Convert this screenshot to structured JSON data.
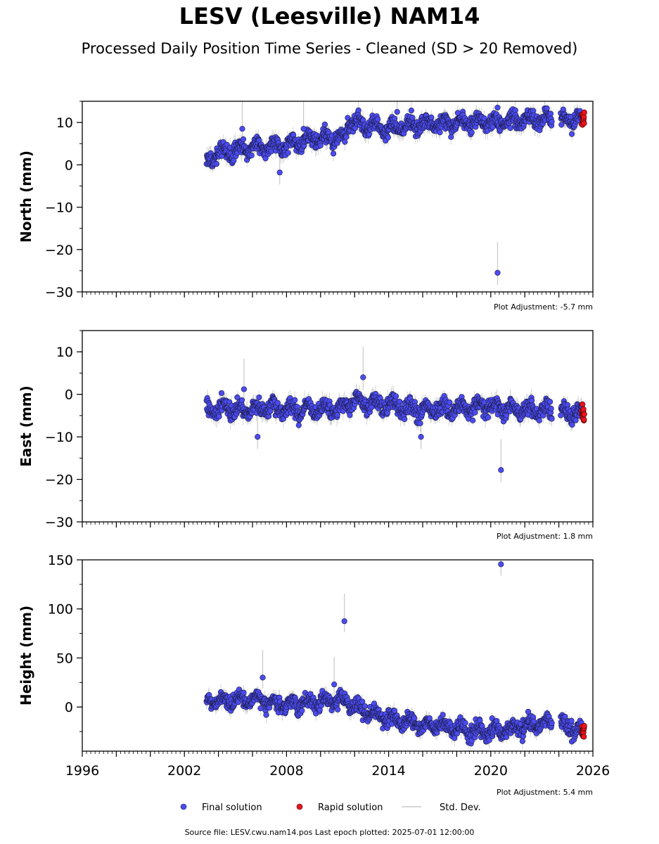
{
  "figure": {
    "title": "LESV (Leesville) NAM14",
    "subtitle": "Processed Daily Position Time Series - Cleaned (SD > 20 Removed)",
    "source_note": "Source file: LESV.cwu.nam14.pos  Last epoch plotted: 2025-07-01 12:00:00"
  },
  "colors": {
    "final": "#4b4bf0",
    "rapid": "#e8141e",
    "stddev": "#c8c8c8",
    "marker_edge": "#1a1a40"
  },
  "legend": {
    "placement": "bottom-center",
    "items": [
      {
        "label": "Final solution",
        "kind": "final"
      },
      {
        "label": "Rapid solution",
        "kind": "rapid"
      },
      {
        "label": "Std. Dev.",
        "kind": "stddev"
      }
    ]
  },
  "chart_data": [
    {
      "type": "scatter",
      "ylabel": "North (mm)",
      "adjustment_note": "Plot Adjustment: -5.7 mm",
      "xlim": [
        1996,
        2026
      ],
      "ylim": [
        -30,
        15
      ],
      "yticks": [
        10,
        0,
        -10,
        -20,
        -30
      ],
      "ytick_labels": [
        "10",
        "0",
        "−10",
        "−20",
        "−30"
      ],
      "show_xtick_labels": false,
      "trend": [
        [
          2003.3,
          1.0
        ],
        [
          2004.0,
          3.0
        ],
        [
          2006.0,
          4.0
        ],
        [
          2008.0,
          4.5
        ],
        [
          2009.5,
          6.0
        ],
        [
          2011.5,
          6.0
        ],
        [
          2011.6,
          10.0
        ],
        [
          2014.0,
          8.5
        ],
        [
          2016.0,
          9.5
        ],
        [
          2019.5,
          10.0
        ],
        [
          2025.5,
          11.0
        ]
      ],
      "gaps": [
        [
          2023.6,
          2024.1
        ]
      ],
      "final_end": 2025.35,
      "rapid_range": [
        2025.35,
        2025.5
      ],
      "noise": 1.8,
      "outliers": [
        [
          2020.4,
          -25.5
        ],
        [
          2020.4,
          13.5
        ],
        [
          2005.4,
          8.5
        ],
        [
          2007.6,
          -1.8
        ],
        [
          2009.0,
          8.5
        ],
        [
          2014.5,
          12.5
        ]
      ]
    },
    {
      "type": "scatter",
      "ylabel": "East (mm)",
      "adjustment_note": "Plot Adjustment: 1.8 mm",
      "xlim": [
        1996,
        2026
      ],
      "ylim": [
        -30,
        15
      ],
      "yticks": [
        10,
        0,
        -10,
        -20,
        -30
      ],
      "ytick_labels": [
        "10",
        "0",
        "−10",
        "−20",
        "−30"
      ],
      "show_xtick_labels": false,
      "trend": [
        [
          2003.3,
          -3.5
        ],
        [
          2011.0,
          -3.5
        ],
        [
          2012.0,
          -1.5
        ],
        [
          2013.5,
          -2.5
        ],
        [
          2016.0,
          -4.0
        ],
        [
          2019.5,
          -3.0
        ],
        [
          2025.5,
          -4.5
        ]
      ],
      "gaps": [
        [
          2023.6,
          2024.1
        ]
      ],
      "final_end": 2025.35,
      "rapid_range": [
        2025.35,
        2025.5
      ],
      "noise": 1.8,
      "outliers": [
        [
          2020.6,
          -17.8
        ],
        [
          2012.5,
          4.0
        ],
        [
          2006.3,
          -10.0
        ],
        [
          2015.9,
          -10.0
        ],
        [
          2005.5,
          1.2
        ]
      ]
    },
    {
      "type": "scatter",
      "ylabel": "Height (mm)",
      "adjustment_note": "Plot Adjustment: 5.4 mm",
      "xlim": [
        1996,
        2026
      ],
      "ylim": [
        -45,
        150
      ],
      "yticks": [
        150,
        100,
        50,
        0
      ],
      "ytick_labels": [
        "150",
        "100",
        "50",
        "0"
      ],
      "show_xtick_labels": true,
      "xticks": [
        1996,
        2002,
        2008,
        2014,
        2020,
        2026
      ],
      "xtick_labels": [
        "1996",
        "2002",
        "2008",
        "2014",
        "2020",
        "2026"
      ],
      "trend": [
        [
          2003.3,
          5.0
        ],
        [
          2006.0,
          8.0
        ],
        [
          2008.0,
          2.0
        ],
        [
          2011.5,
          8.0
        ],
        [
          2012.5,
          -5.0
        ],
        [
          2014.0,
          -12.0
        ],
        [
          2016.0,
          -18.0
        ],
        [
          2019.5,
          -25.0
        ],
        [
          2022.0,
          -20.0
        ],
        [
          2023.5,
          -15.0
        ],
        [
          2025.5,
          -25.0
        ]
      ],
      "gaps": [
        [
          2023.6,
          2024.1
        ]
      ],
      "final_end": 2025.35,
      "rapid_range": [
        2025.35,
        2025.5
      ],
      "noise": 7.0,
      "outliers": [
        [
          2020.6,
          145.5
        ],
        [
          2011.4,
          87.5
        ],
        [
          2006.6,
          30.0
        ],
        [
          2010.8,
          23.0
        ]
      ]
    }
  ]
}
